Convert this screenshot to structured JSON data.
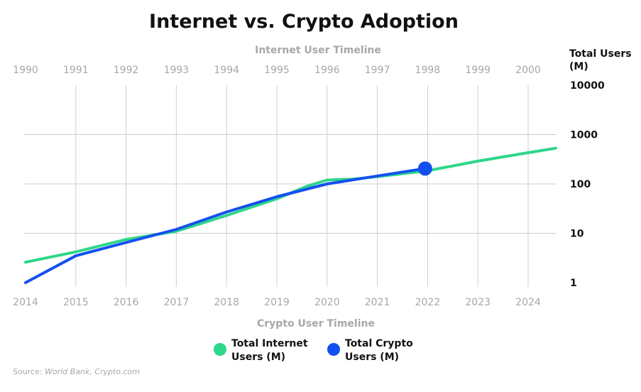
{
  "chart_data": {
    "type": "line",
    "title": "Internet vs. Crypto Adoption",
    "top_axis_title": "Internet User Timeline",
    "bottom_axis_title": "Crypto User Timeline",
    "ylabel": [
      "Total Users",
      "(M)"
    ],
    "top_ticks": [
      "1990",
      "1991",
      "1992",
      "1993",
      "1994",
      "1995",
      "1996",
      "1997",
      "1998",
      "1999",
      "2000"
    ],
    "bottom_ticks": [
      "2014",
      "2015",
      "2016",
      "2017",
      "2018",
      "2019",
      "2020",
      "2021",
      "2022",
      "2023",
      "2024"
    ],
    "y_ticks": [
      "10000",
      "1000",
      "100",
      "10",
      "1"
    ],
    "y_scale": "log",
    "ylim": [
      1,
      10000
    ],
    "grid": true,
    "legend_position": "bottom-center",
    "series": [
      {
        "name": "Total Internet Users (M)",
        "color": "#2ed68a",
        "x_axis": "top",
        "points": [
          [
            1990,
            2.6
          ],
          [
            1991,
            4.2
          ],
          [
            1992,
            7.5
          ],
          [
            1993,
            11
          ],
          [
            1994,
            23
          ],
          [
            1995,
            50
          ],
          [
            1995.6,
            90
          ],
          [
            1996,
            120
          ],
          [
            1996.5,
            125
          ],
          [
            1997,
            140
          ],
          [
            1998,
            185
          ],
          [
            1999,
            290
          ],
          [
            2000,
            430
          ],
          [
            2000.55,
            530
          ]
        ]
      },
      {
        "name": "Total Crypto Users (M)",
        "color": "#1450f0",
        "x_axis": "bottom",
        "points": [
          [
            2014,
            1.0
          ],
          [
            2015,
            3.5
          ],
          [
            2016,
            6.5
          ],
          [
            2017,
            12
          ],
          [
            2018,
            27
          ],
          [
            2019,
            55
          ],
          [
            2020,
            100
          ],
          [
            2021,
            145
          ],
          [
            2021.95,
            205
          ]
        ],
        "end_marker": true
      }
    ],
    "legend": [
      "Total Internet",
      "Users (M)",
      "Total Crypto",
      "Users (M)"
    ]
  },
  "source": {
    "label": "Source: ",
    "names": "World Bank, Crypto.com"
  }
}
